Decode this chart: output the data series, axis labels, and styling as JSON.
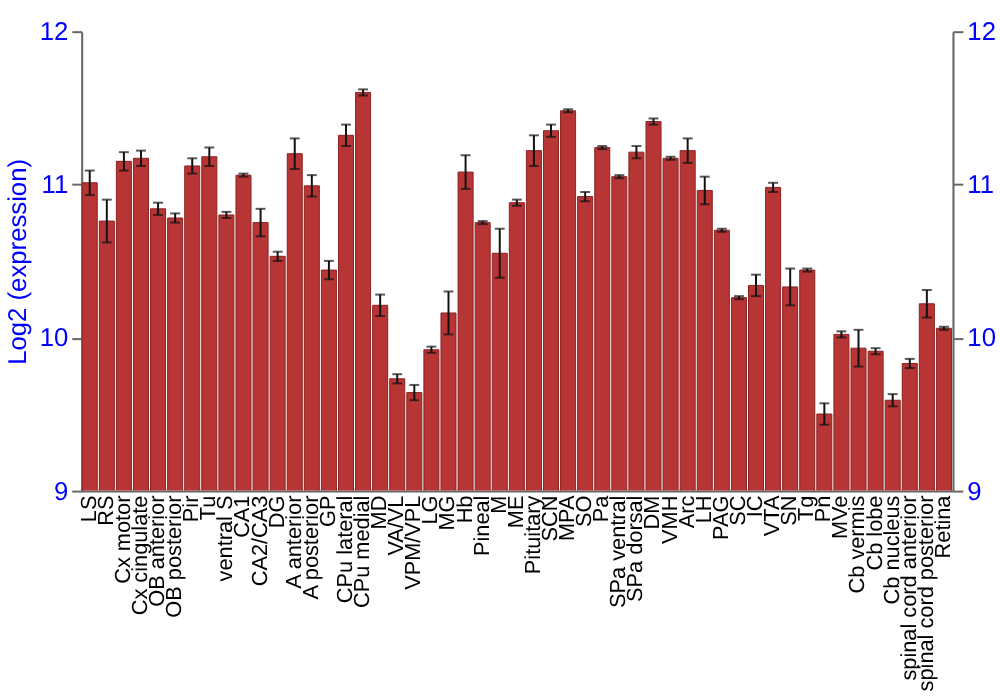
{
  "chart_data": {
    "type": "bar",
    "ylabel": "Log2 (expression)",
    "categories": [
      "LS",
      "RS",
      "Cx motor",
      "Cx cingulate",
      "OB anterior",
      "OB posterior",
      "Pir",
      "Tu",
      "ventral S",
      "CA1",
      "CA2/CA3",
      "DG",
      "A anterior",
      "A posterior",
      "GP",
      "CPu lateral",
      "CPu medial",
      "MD",
      "VA/VL",
      "VPM/VPL",
      "LG",
      "MG",
      "Hb",
      "Pineal",
      "M",
      "ME",
      "Pituitary",
      "SCN",
      "MPA",
      "SO",
      "Pa",
      "SPa ventral",
      "SPa dorsal",
      "DM",
      "VMH",
      "Arc",
      "LH",
      "PAG",
      "SC",
      "IC",
      "VTA",
      "SN",
      "Tg",
      "Pn",
      "MVe",
      "Cb vermis",
      "Cb lobe",
      "Cb nucleus",
      "spinal cord anterior",
      "spinal cord posterior",
      "Retina"
    ],
    "values": [
      11.01,
      10.76,
      11.15,
      11.17,
      10.84,
      10.78,
      11.12,
      11.18,
      10.8,
      11.06,
      10.75,
      10.53,
      11.2,
      10.99,
      10.44,
      11.32,
      11.6,
      10.21,
      9.73,
      9.64,
      9.92,
      10.16,
      11.08,
      10.75,
      10.55,
      10.88,
      11.22,
      11.35,
      11.48,
      10.92,
      11.24,
      11.05,
      11.21,
      11.41,
      11.17,
      11.22,
      10.96,
      10.7,
      10.26,
      10.34,
      10.98,
      10.33,
      10.44,
      9.5,
      10.02,
      9.93,
      9.91,
      9.59,
      9.83,
      10.22,
      10.06
    ],
    "errors": [
      0.08,
      0.14,
      0.06,
      0.05,
      0.04,
      0.03,
      0.05,
      0.06,
      0.02,
      0.01,
      0.09,
      0.03,
      0.1,
      0.07,
      0.06,
      0.07,
      0.02,
      0.07,
      0.03,
      0.05,
      0.02,
      0.14,
      0.11,
      0.01,
      0.16,
      0.02,
      0.1,
      0.04,
      0.01,
      0.03,
      0.01,
      0.01,
      0.04,
      0.02,
      0.01,
      0.08,
      0.09,
      0.01,
      0.01,
      0.07,
      0.03,
      0.12,
      0.01,
      0.07,
      0.02,
      0.12,
      0.02,
      0.04,
      0.03,
      0.09,
      0.01
    ],
    "color": "#b83535",
    "ylim": [
      9,
      12
    ],
    "yticks": [
      9,
      10,
      11,
      12
    ],
    "y2lim": [
      9,
      12
    ],
    "y2ticks": [
      9,
      10,
      11,
      12
    ],
    "grid": "y"
  }
}
